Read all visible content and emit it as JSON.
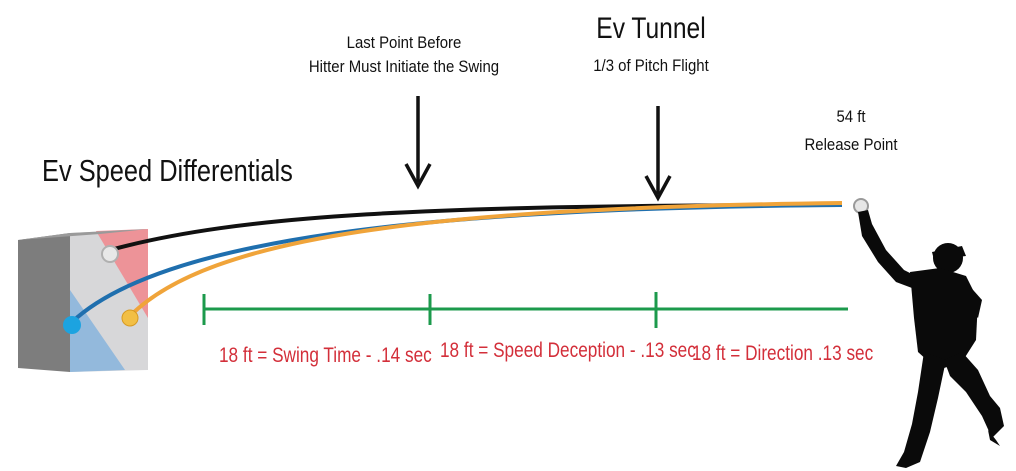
{
  "diagram": {
    "title": "Ev Speed Differentials",
    "tunnel": {
      "title": "Ev Tunnel",
      "subtitle": "1/3 of Pitch Flight"
    },
    "last_point": {
      "line1": "Last Point Before",
      "line2": "Hitter Must Initiate the Swing"
    },
    "release": {
      "line1": "54 ft",
      "line2": "Release Point"
    },
    "segments": [
      {
        "label": "18 ft = Swing Time - .14 sec"
      },
      {
        "label": "18 ft = Speed Deception - .13 sec"
      },
      {
        "label": "18 ft = Direction .13 sec"
      }
    ],
    "colors": {
      "segment_line": "#1c9a4c",
      "segment_text": "#d32f3a",
      "path_black": "#111111",
      "path_blue": "#1f6fae",
      "path_orange": "#f0a43a",
      "zone_red": "#ee8f95",
      "zone_blue": "#8fb7dc",
      "ball_blue": "#1ca3e0",
      "ball_yellow": "#f2bf45"
    }
  }
}
